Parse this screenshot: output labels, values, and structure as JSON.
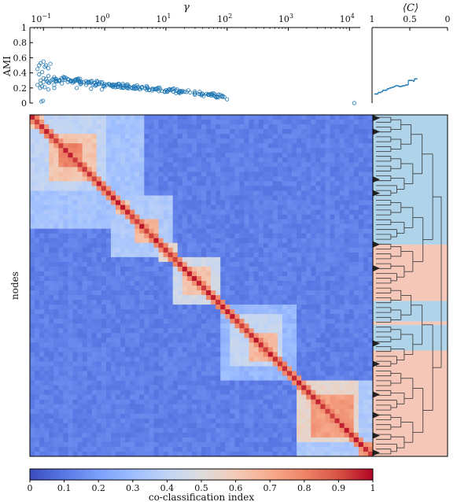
{
  "chart_data": [
    {
      "type": "scatter",
      "title": "",
      "xlabel": "γ",
      "ylabel": "AMI",
      "x_scale": "log",
      "xlim": [
        0.06,
        15000
      ],
      "ylim": [
        0,
        1
      ],
      "x_ticks": [
        {
          "value": 0.1,
          "label": "10",
          "exp": "−1"
        },
        {
          "value": 1,
          "label": "10",
          "exp": "0"
        },
        {
          "value": 10,
          "label": "10",
          "exp": "1"
        },
        {
          "value": 100,
          "label": "10",
          "exp": "2"
        },
        {
          "value": 1000,
          "label": "10",
          "exp": "3"
        },
        {
          "value": 10000,
          "label": "10",
          "exp": "4"
        }
      ],
      "y_ticks": [
        "0",
        "0.2",
        "0.4",
        "0.6",
        "0.8",
        "1"
      ],
      "grid": false,
      "series": [
        {
          "color": "#1f77b4",
          "marker": "circle-open",
          "x": [
            0.08,
            0.085,
            0.09,
            0.095,
            0.1,
            0.105,
            0.11,
            0.12,
            0.13,
            0.085,
            0.09,
            0.1,
            0.11,
            0.12,
            0.08,
            0.09,
            0.1,
            0.115,
            0.125,
            0.088,
            0.095,
            0.105,
            0.12,
            0.13,
            0.14,
            0.16,
            0.18,
            0.2,
            0.22,
            0.25,
            0.28,
            0.3,
            0.33,
            0.36,
            0.4,
            0.45,
            0.5,
            0.55,
            0.6,
            0.7,
            0.8,
            0.9,
            1.0,
            1.2,
            1.4,
            1.6,
            1.8,
            2.0,
            2.5,
            3,
            3.5,
            4,
            5,
            6,
            7,
            8,
            10,
            12,
            15,
            18,
            20,
            25,
            30,
            35,
            40,
            50,
            60,
            70,
            80,
            90,
            0.15,
            0.2,
            0.25,
            0.3,
            0.4,
            0.5,
            0.7,
            1.0,
            1.5,
            2.0,
            3.0,
            0.12,
            0.15,
            0.35,
            0.6,
            0.9,
            0.092,
            0.098,
            100,
            12000
          ],
          "y": [
            0.45,
            0.5,
            0.53,
            0.41,
            0.55,
            0.48,
            0.5,
            0.46,
            0.52,
            0.38,
            0.3,
            0.28,
            0.32,
            0.36,
            0.24,
            0.26,
            0.33,
            0.29,
            0.27,
            0.2,
            0.22,
            0.21,
            0.27,
            0.29,
            0.31,
            0.32,
            0.3,
            0.33,
            0.31,
            0.32,
            0.3,
            0.29,
            0.31,
            0.3,
            0.29,
            0.28,
            0.29,
            0.28,
            0.27,
            0.27,
            0.26,
            0.26,
            0.25,
            0.25,
            0.24,
            0.24,
            0.23,
            0.23,
            0.22,
            0.22,
            0.21,
            0.21,
            0.2,
            0.19,
            0.19,
            0.18,
            0.17,
            0.17,
            0.16,
            0.15,
            0.15,
            0.14,
            0.13,
            0.12,
            0.12,
            0.11,
            0.1,
            0.09,
            0.09,
            0.08,
            0.24,
            0.26,
            0.28,
            0.27,
            0.25,
            0.24,
            0.23,
            0.22,
            0.21,
            0.2,
            0.19,
            0.18,
            0.2,
            0.2,
            0.19,
            0.18,
            0.02,
            0.03,
            0.05,
            0.0
          ]
        }
      ]
    },
    {
      "type": "line",
      "title": "",
      "xlabel": "⟨C⟩",
      "ylabel": "",
      "xlim": [
        1,
        0
      ],
      "ylim": [
        0,
        1
      ],
      "x_ticks": [
        "1",
        "0.5",
        "0"
      ],
      "series": [
        {
          "color": "#1f77b4",
          "x": [
            0.97,
            0.92,
            0.88,
            0.86,
            0.84,
            0.8,
            0.77,
            0.74,
            0.71,
            0.69,
            0.67,
            0.65,
            0.63,
            0.6,
            0.58,
            0.56,
            0.54,
            0.52,
            0.5,
            0.49,
            0.47,
            0.46,
            0.44,
            0.42,
            0.4
          ],
          "y": [
            0.12,
            0.14,
            0.15,
            0.17,
            0.17,
            0.19,
            0.2,
            0.21,
            0.22,
            0.23,
            0.23,
            0.22,
            0.22,
            0.23,
            0.23,
            0.24,
            0.24,
            0.3,
            0.3,
            0.3,
            0.3,
            0.29,
            0.32,
            0.32,
            0.32
          ]
        }
      ]
    },
    {
      "type": "heatmap",
      "title": "",
      "xlabel": "",
      "ylabel": "nodes",
      "value_range": [
        0,
        1
      ],
      "colormap": [
        "#3b4cc0",
        "#5a78e4",
        "#7b9ff9",
        "#9ebeff",
        "#c0d4f5",
        "#dddcdc",
        "#f2cbb7",
        "#f7ac8e",
        "#ee8468",
        "#d65244",
        "#b40426"
      ],
      "base_level": 0.12,
      "blocks": [
        {
          "start": 0.0,
          "end": 0.335,
          "level": 0.32
        },
        {
          "start": 0.0,
          "end": 0.22,
          "level": 0.4
        },
        {
          "start": 0.06,
          "end": 0.2,
          "level": 0.62
        },
        {
          "start": 0.08,
          "end": 0.15,
          "level": 0.8
        },
        {
          "start": 0.0,
          "end": 0.035,
          "level": 0.62
        },
        {
          "start": 0.24,
          "end": 0.42,
          "level": 0.35
        },
        {
          "start": 0.245,
          "end": 0.29,
          "level": 0.6
        },
        {
          "start": 0.3,
          "end": 0.37,
          "level": 0.66
        },
        {
          "start": 0.37,
          "end": 0.43,
          "level": 0.52
        },
        {
          "start": 0.42,
          "end": 0.55,
          "level": 0.45
        },
        {
          "start": 0.44,
          "end": 0.53,
          "level": 0.62
        },
        {
          "start": 0.55,
          "end": 0.78,
          "level": 0.28
        },
        {
          "start": 0.58,
          "end": 0.74,
          "level": 0.42
        },
        {
          "start": 0.64,
          "end": 0.72,
          "level": 0.66
        },
        {
          "start": 0.78,
          "end": 1.0,
          "level": 0.35
        },
        {
          "start": 0.78,
          "end": 0.96,
          "level": 0.55
        },
        {
          "start": 0.82,
          "end": 0.94,
          "level": 0.74
        },
        {
          "start": 0.96,
          "end": 1.0,
          "level": 0.75
        }
      ],
      "colorbar": {
        "label": "co-classification index",
        "ticks": [
          "0",
          "0.1",
          "0.2",
          "0.3",
          "0.4",
          "0.5",
          "0.6",
          "0.7",
          "0.8",
          "0.9",
          "1"
        ]
      }
    },
    {
      "type": "dendrogram",
      "clusters": [
        {
          "start": 0.0,
          "end": 0.38,
          "color": "#afd3e8"
        },
        {
          "start": 0.38,
          "end": 0.545,
          "color": "#f4c7b8"
        },
        {
          "start": 0.545,
          "end": 0.605,
          "color": "#afd3e8"
        },
        {
          "start": 0.605,
          "end": 0.615,
          "color": "#f4c7b8"
        },
        {
          "start": 0.615,
          "end": 0.69,
          "color": "#afd3e8"
        },
        {
          "start": 0.69,
          "end": 1.0,
          "color": "#f4c7b8"
        }
      ],
      "collapsed_markers": [
        0.0,
        0.04,
        0.18,
        0.22,
        0.37,
        0.44,
        0.66,
        0.72,
        0.81,
        0.87,
        0.93,
        0.98
      ]
    }
  ]
}
